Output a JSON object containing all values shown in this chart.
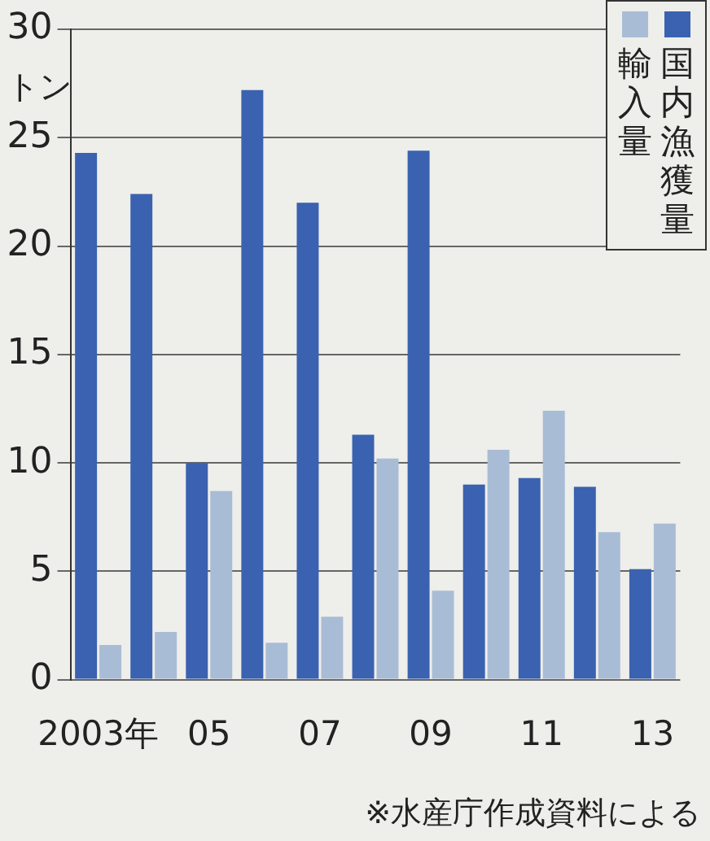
{
  "chart_data": {
    "type": "bar",
    "ylabel": "トン",
    "categories": [
      "2003年",
      null,
      "05",
      null,
      "07",
      null,
      "09",
      null,
      "11",
      null,
      "13"
    ],
    "series": [
      {
        "name": "国内漁獲量",
        "color": "#3a62b0",
        "values": [
          24.3,
          22.4,
          10.0,
          27.2,
          22.0,
          11.3,
          24.4,
          9.0,
          9.3,
          8.9,
          5.1
        ]
      },
      {
        "name": "輸入量",
        "color": "#a9bcd6",
        "values": [
          1.6,
          2.2,
          8.7,
          1.7,
          2.9,
          10.2,
          4.1,
          10.6,
          12.4,
          6.8,
          7.2
        ]
      }
    ],
    "ylim": [
      0,
      30
    ],
    "yticks": [
      0,
      5,
      10,
      15,
      20,
      25,
      30
    ],
    "grid": "y",
    "legend": "top right",
    "annotations": [
      "※水産庁作成資料による"
    ]
  }
}
